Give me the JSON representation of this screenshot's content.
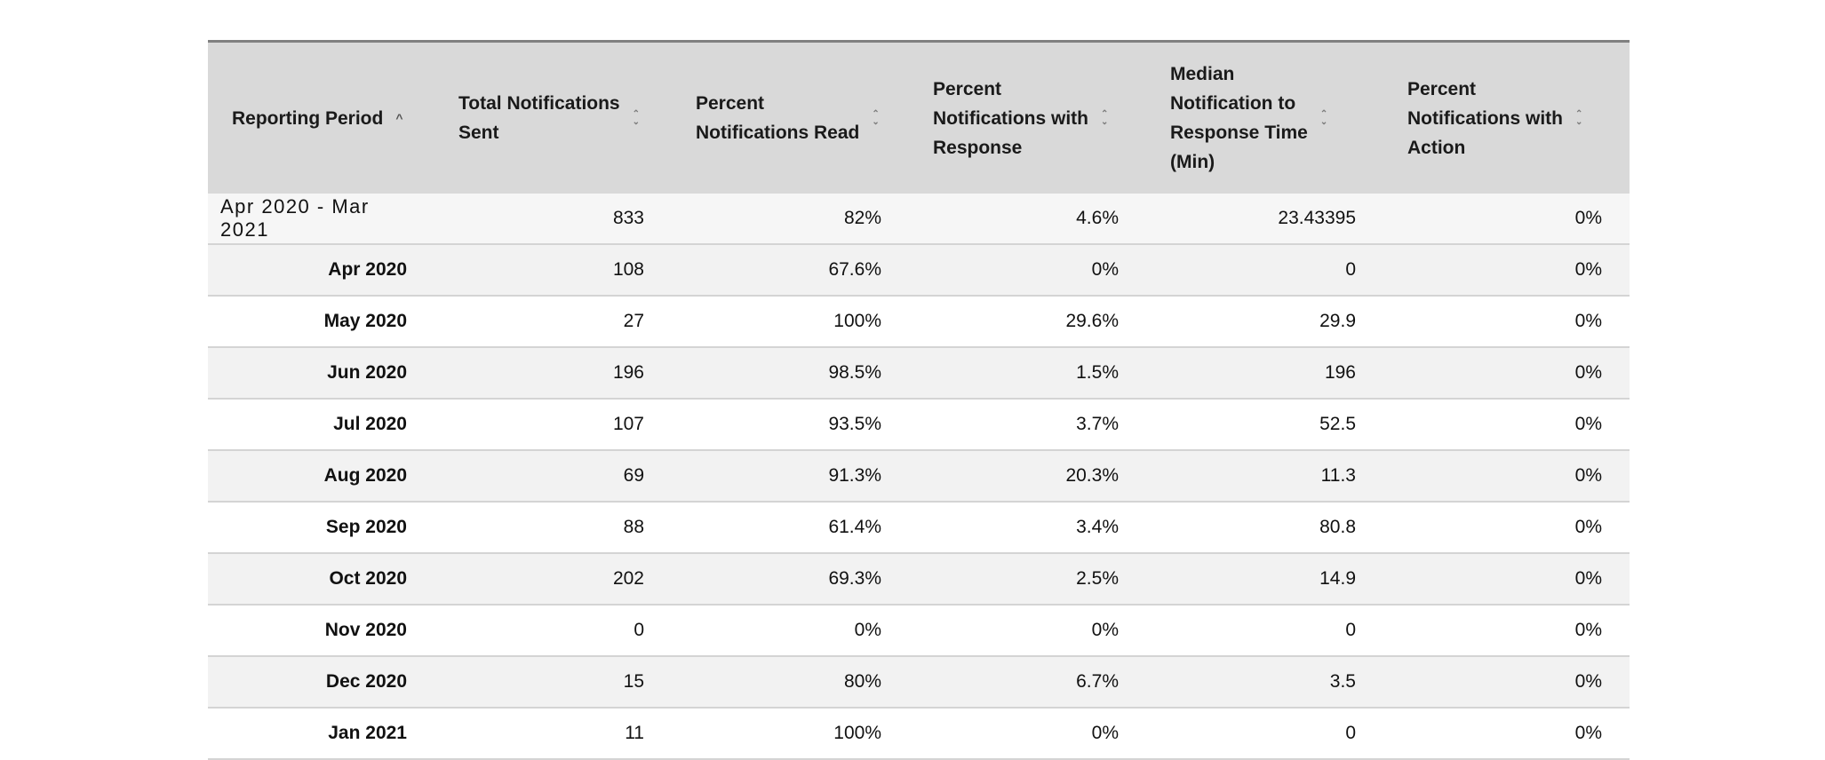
{
  "table": {
    "headers": [
      {
        "lines": [
          "Reporting Period"
        ],
        "sort": "ascending"
      },
      {
        "lines": [
          "Total Notifications",
          "Sent"
        ],
        "sort": "none"
      },
      {
        "lines": [
          "Percent",
          "Notifications Read"
        ],
        "sort": "none"
      },
      {
        "lines": [
          "Percent",
          "Notifications with",
          "Response"
        ],
        "sort": "none"
      },
      {
        "lines": [
          "Median",
          "Notification to",
          "Response Time",
          "(Min)"
        ],
        "sort": "none"
      },
      {
        "lines": [
          "Percent",
          "Notifications with",
          "Action"
        ],
        "sort": "none"
      }
    ],
    "summary": {
      "period": "Apr 2020 - Mar 2021",
      "total_sent": "833",
      "pct_read": "82%",
      "pct_response": "4.6%",
      "median_response_time": "23.43395",
      "pct_action": "0%"
    },
    "rows": [
      {
        "period": "Apr 2020",
        "total_sent": "108",
        "pct_read": "67.6%",
        "pct_response": "0%",
        "median_response_time": "0",
        "pct_action": "0%"
      },
      {
        "period": "May 2020",
        "total_sent": "27",
        "pct_read": "100%",
        "pct_response": "29.6%",
        "median_response_time": "29.9",
        "pct_action": "0%"
      },
      {
        "period": "Jun 2020",
        "total_sent": "196",
        "pct_read": "98.5%",
        "pct_response": "1.5%",
        "median_response_time": "196",
        "pct_action": "0%"
      },
      {
        "period": "Jul 2020",
        "total_sent": "107",
        "pct_read": "93.5%",
        "pct_response": "3.7%",
        "median_response_time": "52.5",
        "pct_action": "0%"
      },
      {
        "period": "Aug 2020",
        "total_sent": "69",
        "pct_read": "91.3%",
        "pct_response": "20.3%",
        "median_response_time": "11.3",
        "pct_action": "0%"
      },
      {
        "period": "Sep 2020",
        "total_sent": "88",
        "pct_read": "61.4%",
        "pct_response": "3.4%",
        "median_response_time": "80.8",
        "pct_action": "0%"
      },
      {
        "period": "Oct 2020",
        "total_sent": "202",
        "pct_read": "69.3%",
        "pct_response": "2.5%",
        "median_response_time": "14.9",
        "pct_action": "0%"
      },
      {
        "period": "Nov 2020",
        "total_sent": "0",
        "pct_read": "0%",
        "pct_response": "0%",
        "median_response_time": "0",
        "pct_action": "0%"
      },
      {
        "period": "Dec 2020",
        "total_sent": "15",
        "pct_read": "80%",
        "pct_response": "6.7%",
        "median_response_time": "3.5",
        "pct_action": "0%"
      },
      {
        "period": "Jan 2021",
        "total_sent": "11",
        "pct_read": "100%",
        "pct_response": "0%",
        "median_response_time": "0",
        "pct_action": "0%"
      }
    ]
  },
  "colors": {
    "header_bg": "#d9d9d9",
    "summary_row_bg": "#f6f6f6",
    "odd_row_bg": "#f2f2f2",
    "even_row_bg": "#ffffff",
    "row_divider": "#d4d4d4"
  },
  "icons": {
    "sort_ascending": "chevron-up-icon",
    "sort_unsorted": "sort-both-icon"
  }
}
